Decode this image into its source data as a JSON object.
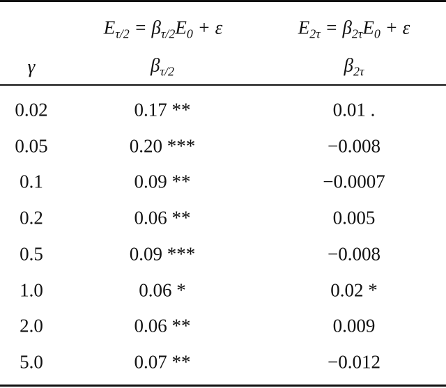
{
  "table": {
    "header": {
      "equations": [
        null,
        [
          {
            "text": "E"
          },
          {
            "sub": "τ/2"
          },
          {
            "text": " = β"
          },
          {
            "sub": "τ/2"
          },
          {
            "text": "E"
          },
          {
            "sub": "0"
          },
          {
            "text": " + ε"
          }
        ],
        [
          {
            "text": "E"
          },
          {
            "sub": "2τ"
          },
          {
            "text": " = β"
          },
          {
            "sub": "2τ"
          },
          {
            "text": "E"
          },
          {
            "sub": "0"
          },
          {
            "text": " + ε"
          }
        ]
      ],
      "columns": [
        [
          {
            "text": "γ"
          }
        ],
        [
          {
            "text": "β"
          },
          {
            "sub": "τ/2"
          }
        ],
        [
          {
            "text": "β"
          },
          {
            "sub": "2τ"
          }
        ]
      ]
    },
    "rows": [
      [
        "0.02",
        "0.17 **",
        "0.01 ."
      ],
      [
        "0.05",
        "0.20 ***",
        "−0.008"
      ],
      [
        "0.1",
        "0.09 **",
        "−0.0007"
      ],
      [
        "0.2",
        "0.06 **",
        "0.005"
      ],
      [
        "0.5",
        "0.09 ***",
        "−0.008"
      ],
      [
        "1.0",
        "0.06 *",
        "0.02 *"
      ],
      [
        "2.0",
        "0.06 **",
        "0.009"
      ],
      [
        "5.0",
        "0.07 **",
        "−0.012"
      ]
    ]
  }
}
